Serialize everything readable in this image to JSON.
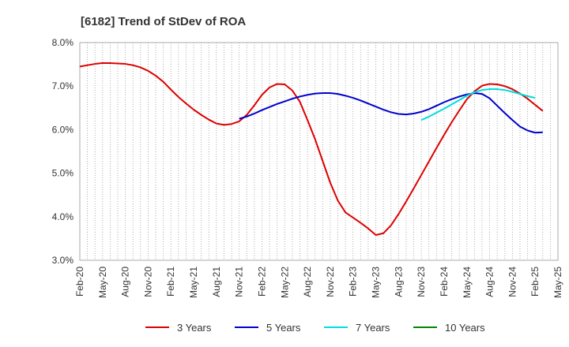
{
  "chart_data": {
    "type": "line",
    "title": "[6182]  Trend of StDev of ROA",
    "xlabel": "",
    "ylabel": "",
    "ylim": [
      3.0,
      8.0
    ],
    "y_ticks": [
      "3.0%",
      "4.0%",
      "5.0%",
      "6.0%",
      "7.0%",
      "8.0%"
    ],
    "y_tick_values": [
      3.0,
      4.0,
      5.0,
      6.0,
      7.0,
      8.0
    ],
    "x_tick_labels": [
      "Feb-20",
      "May-20",
      "Aug-20",
      "Nov-20",
      "Feb-21",
      "May-21",
      "Aug-21",
      "Nov-21",
      "Feb-22",
      "May-22",
      "Aug-22",
      "Nov-22",
      "Feb-23",
      "May-23",
      "Aug-23",
      "Nov-23",
      "Feb-24",
      "May-24",
      "Aug-24",
      "Nov-24",
      "Feb-25",
      "May-25"
    ],
    "x_start": "Feb-20",
    "x_months": 63,
    "grid": "vertical-dotted",
    "legend_position": "bottom",
    "series": [
      {
        "name": "3 Years",
        "color": "#dd0000",
        "start": "Feb-20",
        "values": [
          7.45,
          7.48,
          7.51,
          7.53,
          7.53,
          7.52,
          7.51,
          7.48,
          7.43,
          7.35,
          7.24,
          7.1,
          6.92,
          6.75,
          6.6,
          6.46,
          6.34,
          6.23,
          6.14,
          6.11,
          6.13,
          6.19,
          6.34,
          6.56,
          6.8,
          6.97,
          7.05,
          7.04,
          6.9,
          6.64,
          6.22,
          5.78,
          5.28,
          4.78,
          4.37,
          4.1,
          3.98,
          3.86,
          3.73,
          3.58,
          3.62,
          3.8,
          4.06,
          4.35,
          4.65,
          4.96,
          5.27,
          5.58,
          5.88,
          6.17,
          6.44,
          6.7,
          6.88,
          7.01,
          7.05,
          7.04,
          7.0,
          6.93,
          6.83,
          6.71,
          6.57,
          6.43
        ]
      },
      {
        "name": "5 Years",
        "color": "#0000cc",
        "start": "Nov-21",
        "values": [
          6.25,
          6.3,
          6.37,
          6.45,
          6.52,
          6.59,
          6.65,
          6.71,
          6.76,
          6.8,
          6.83,
          6.84,
          6.84,
          6.82,
          6.78,
          6.73,
          6.67,
          6.6,
          6.53,
          6.46,
          6.4,
          6.36,
          6.35,
          6.37,
          6.41,
          6.47,
          6.55,
          6.63,
          6.7,
          6.76,
          6.81,
          6.84,
          6.82,
          6.72,
          6.55,
          6.38,
          6.22,
          6.07,
          5.98,
          5.93,
          5.94
        ]
      },
      {
        "name": "7 Years",
        "color": "#00dddd",
        "start": "Nov-23",
        "values": [
          6.22,
          6.3,
          6.39,
          6.48,
          6.58,
          6.68,
          6.78,
          6.86,
          6.91,
          6.93,
          6.93,
          6.91,
          6.87,
          6.82,
          6.77,
          6.73
        ]
      },
      {
        "name": "10 Years",
        "color": "#008800",
        "start": "",
        "values": []
      }
    ]
  }
}
